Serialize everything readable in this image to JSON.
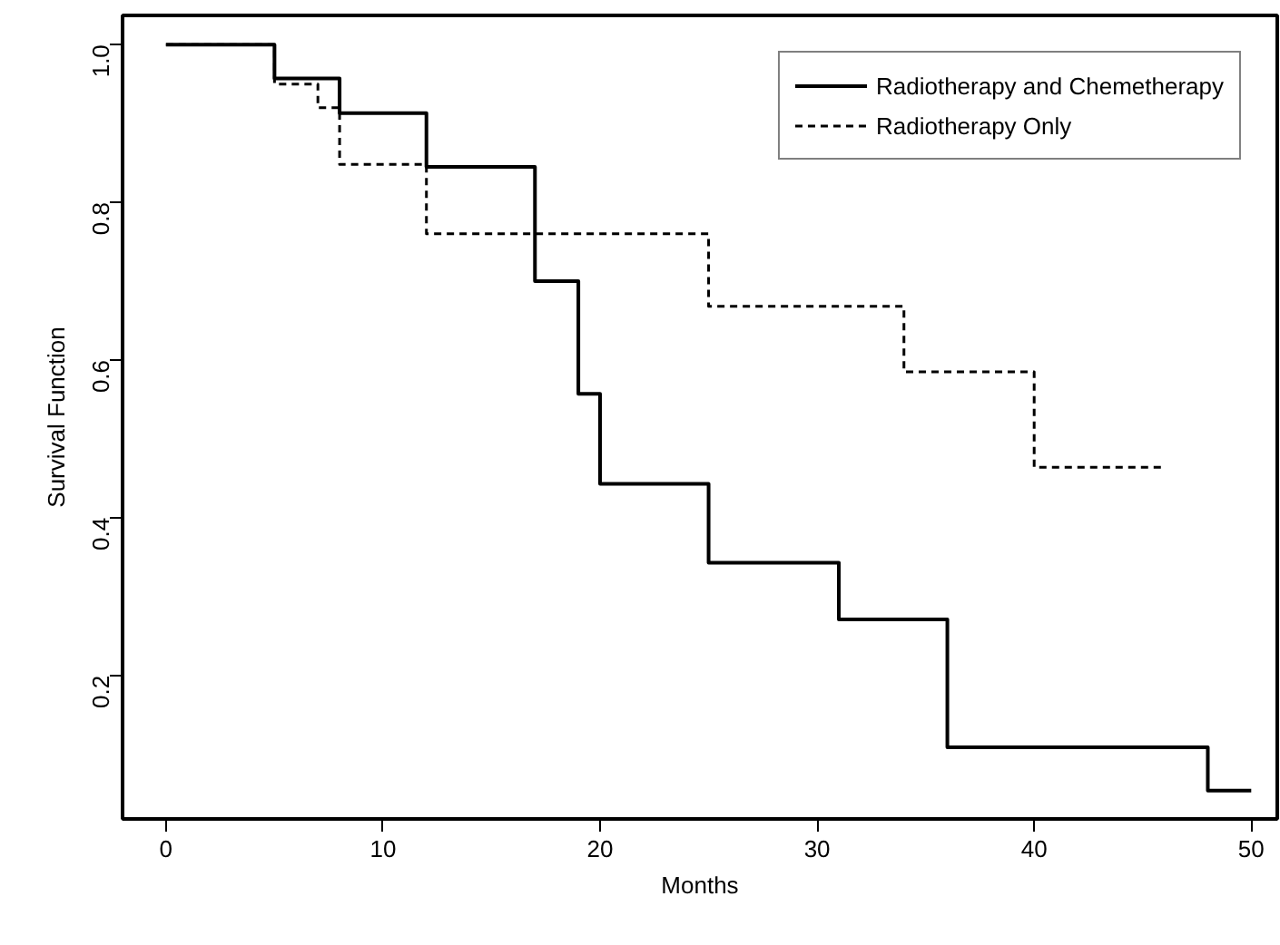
{
  "chart_data": {
    "type": "step",
    "xlabel": "Months",
    "ylabel": "Survival Function",
    "xlim": [
      -2,
      51.2
    ],
    "ylim": [
      0.018,
      1.037
    ],
    "xticks": [
      0,
      10,
      20,
      30,
      40,
      50
    ],
    "yticks": [
      0.2,
      0.4,
      0.6,
      0.8,
      {
        "value": 1,
        "label": "1.0"
      }
    ],
    "grid": false,
    "legend": "top right",
    "series": [
      {
        "name": "Radiotherapy and Chemetherapy",
        "color": "#000000",
        "line_style": "solid",
        "x": [
          0,
          5,
          8,
          12,
          17,
          19,
          20,
          25,
          31,
          36,
          48,
          50
        ],
        "values": [
          1.0,
          0.957,
          0.913,
          0.845,
          0.7,
          0.557,
          0.443,
          0.343,
          0.271,
          0.109,
          0.054,
          0.054
        ]
      },
      {
        "name": "Radiotherapy Only",
        "color": "#000000",
        "line_style": "dotted",
        "x": [
          0,
          5,
          7,
          8,
          12,
          25,
          34,
          40,
          46
        ],
        "values": [
          1.0,
          0.95,
          0.92,
          0.848,
          0.76,
          0.668,
          0.585,
          0.464,
          0.464
        ]
      }
    ]
  }
}
